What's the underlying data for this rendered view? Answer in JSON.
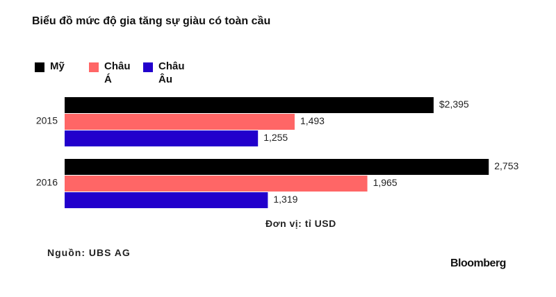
{
  "chart_data": {
    "type": "bar",
    "orientation": "horizontal",
    "title": "Biểu đồ mức độ gia tăng sự giàu có toàn cầu",
    "categories": [
      "2015",
      "2016"
    ],
    "series": [
      {
        "name": "Mỹ",
        "color": "#000000",
        "values": [
          2395,
          2753
        ],
        "value_labels": [
          "$2,395",
          "2,753"
        ]
      },
      {
        "name": "Châu Á",
        "color": "#ff6666",
        "values": [
          1493,
          1965
        ],
        "value_labels": [
          "1,493",
          "1,965"
        ]
      },
      {
        "name": "Châu Âu",
        "color": "#2200cc",
        "values": [
          1255,
          1319
        ],
        "value_labels": [
          "1,255",
          "1,319"
        ]
      }
    ],
    "xlim": [
      0,
      3000
    ],
    "unit_note": "Đơn vị: tỉ USD",
    "source": "Nguồn: UBS AG",
    "brand": "Bloomberg"
  }
}
